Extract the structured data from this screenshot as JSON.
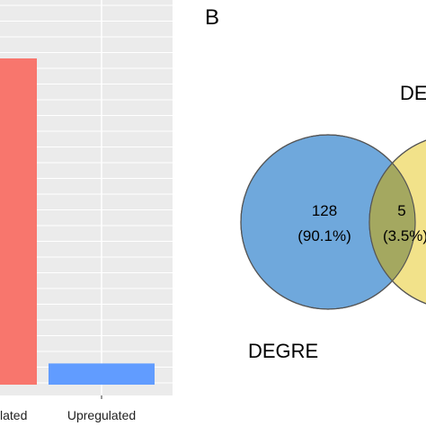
{
  "chart_data": [
    {
      "type": "bar",
      "categories": [
        "lated",
        "Upregulated"
      ],
      "values": [
        100,
        6.5
      ],
      "colors": [
        "#F8766D",
        "#619CFF"
      ],
      "grid": true,
      "background": "#EBEBEB"
    },
    {
      "type": "venn",
      "panel_label": "B",
      "sets": [
        {
          "label": "DEGRE",
          "color": "#6FA8DC"
        },
        {
          "label": "DE",
          "color": "#F2E28A"
        }
      ],
      "regions": [
        {
          "count": "128",
          "percent": "(90.1%)"
        },
        {
          "count": "5",
          "percent": "(3.5%)"
        }
      ],
      "overlap_color": "#A4A860"
    }
  ]
}
